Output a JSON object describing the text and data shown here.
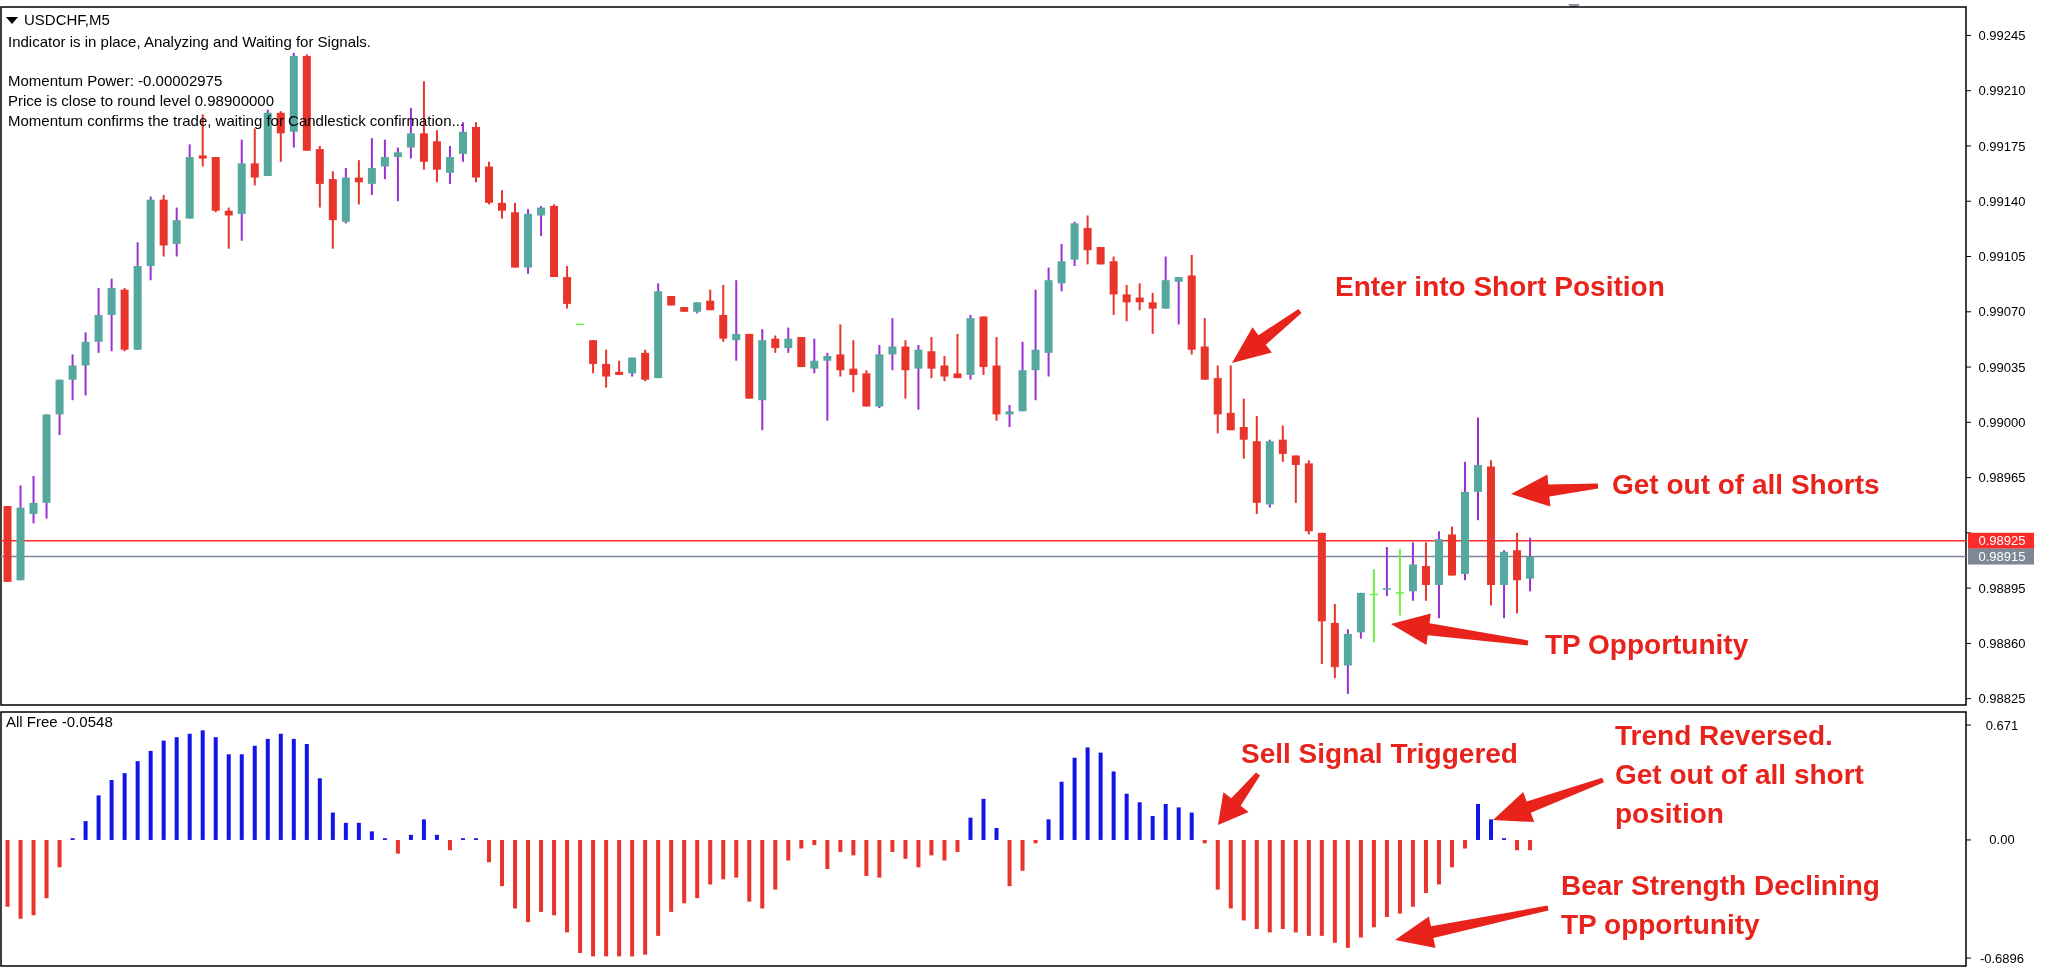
{
  "chart_data": [
    {
      "type": "candlestick",
      "title": "USDCHF,M5",
      "annotations": [
        "Indicator is in place, Analyzing and Waiting for Signals.",
        "Momentum Power: -0.00002975",
        "Price is close to round level 0.98900000",
        "Momentum confirms the trade, waiting for Candlestick confirmation...",
        "Enter into Short Position",
        "Get out of all Shorts",
        "TP Opportunity"
      ],
      "categories": [
        null,
        null,
        null,
        null,
        null,
        null,
        null,
        null,
        null,
        null,
        null,
        null,
        null,
        null,
        null,
        null,
        null,
        null,
        null,
        null,
        null,
        null,
        null,
        null,
        null,
        null,
        null,
        null,
        null,
        null,
        null,
        null,
        null,
        null,
        null,
        null,
        null,
        null,
        null,
        null,
        null,
        null,
        null,
        null,
        null,
        null,
        null,
        null,
        null,
        null,
        null,
        null,
        null,
        null,
        null,
        null,
        null,
        null,
        null,
        null,
        null,
        null,
        null,
        null,
        null,
        null,
        null,
        null,
        null,
        null,
        null,
        null,
        null,
        null,
        null,
        null,
        null,
        null,
        null,
        null,
        null,
        null,
        null,
        null,
        null,
        null,
        null,
        null,
        null,
        null,
        null,
        null,
        null,
        null,
        null,
        null,
        null,
        null,
        null,
        null,
        null,
        null,
        null,
        null,
        null,
        null,
        null,
        null,
        null,
        null,
        null,
        null,
        null,
        null,
        null,
        null,
        null,
        null,
        null,
        null,
        null,
        null,
        null,
        null,
        null,
        null,
        null,
        null,
        null,
        null,
        null,
        null,
        null,
        null,
        null,
        null,
        null,
        null,
        null,
        null,
        null,
        null,
        null,
        null,
        null,
        null,
        null,
        null,
        null,
        null,
        null
      ],
      "ohlc": [
        [
          0.98947,
          0.98947,
          0.98899,
          0.98899
        ],
        [
          0.989,
          0.9896,
          0.989,
          0.98946
        ],
        [
          0.98942,
          0.98966,
          0.98936,
          0.98949
        ],
        [
          0.98949,
          0.99005,
          0.98939,
          0.99005
        ],
        [
          0.99005,
          0.99027,
          0.98992,
          0.99027
        ],
        [
          0.99027,
          0.99043,
          0.99014,
          0.99036
        ],
        [
          0.99036,
          0.99057,
          0.99017,
          0.99051
        ],
        [
          0.99051,
          0.99085,
          0.99044,
          0.99068
        ],
        [
          0.99068,
          0.99091,
          0.99045,
          0.99085
        ],
        [
          0.99084,
          0.99085,
          0.99045,
          0.99046
        ],
        [
          0.99046,
          0.99114,
          0.99046,
          0.99099
        ],
        [
          0.99099,
          0.99143,
          0.9909,
          0.99141
        ],
        [
          0.99141,
          0.99144,
          0.99105,
          0.99112
        ],
        [
          0.99113,
          0.99136,
          0.99105,
          0.99128
        ],
        [
          0.99129,
          0.99176,
          0.99129,
          0.99168
        ],
        [
          0.99169,
          0.99195,
          0.99162,
          0.99167
        ],
        [
          0.99168,
          0.99168,
          0.99133,
          0.99134
        ],
        [
          0.99134,
          0.99136,
          0.9911,
          0.99131
        ],
        [
          0.99132,
          0.99179,
          0.99115,
          0.99164
        ],
        [
          0.99164,
          0.99186,
          0.9915,
          0.99155
        ],
        [
          0.99156,
          0.99198,
          0.99156,
          0.99196
        ],
        [
          0.99196,
          0.99197,
          0.99165,
          0.99183
        ],
        [
          0.99184,
          0.99234,
          0.99174,
          0.99232
        ],
        [
          0.99232,
          0.99233,
          0.99172,
          0.99172
        ],
        [
          0.99173,
          0.99175,
          0.99136,
          0.99151
        ],
        [
          0.99154,
          0.99159,
          0.9911,
          0.99128
        ],
        [
          0.99127,
          0.99161,
          0.99126,
          0.99155
        ],
        [
          0.99155,
          0.99166,
          0.99138,
          0.99152
        ],
        [
          0.99151,
          0.9918,
          0.99144,
          0.99161
        ],
        [
          0.99162,
          0.99179,
          0.99154,
          0.99168
        ],
        [
          0.99168,
          0.99174,
          0.9914,
          0.99171
        ],
        [
          0.99174,
          0.99199,
          0.99167,
          0.99183
        ],
        [
          0.99183,
          0.99216,
          0.9916,
          0.99165
        ],
        [
          0.99178,
          0.99185,
          0.99152,
          0.9916
        ],
        [
          0.99158,
          0.99175,
          0.99151,
          0.99168
        ],
        [
          0.9917,
          0.9919,
          0.99165,
          0.99184
        ],
        [
          0.99187,
          0.9919,
          0.99152,
          0.99155
        ],
        [
          0.99162,
          0.99165,
          0.99138,
          0.99139
        ],
        [
          0.99139,
          0.99147,
          0.99129,
          0.99134
        ],
        [
          0.99133,
          0.99139,
          0.99098,
          0.99098
        ],
        [
          0.99098,
          0.99135,
          0.99094,
          0.99132
        ],
        [
          0.99131,
          0.99137,
          0.99118,
          0.99136
        ],
        [
          0.99137,
          0.99138,
          0.99092,
          0.99092
        ],
        [
          0.99092,
          0.99099,
          0.99072,
          0.99075
        ],
        [
          0.99062,
          0.99062,
          0.99062,
          0.99062
        ],
        [
          0.99052,
          0.99052,
          0.99031,
          0.99037
        ],
        [
          0.99037,
          0.99046,
          0.99022,
          0.99029
        ],
        [
          0.99032,
          0.99039,
          0.9903,
          0.9903
        ],
        [
          0.99031,
          0.99041,
          0.99029,
          0.99041
        ],
        [
          0.99044,
          0.99046,
          0.99026,
          0.99027
        ],
        [
          0.99028,
          0.99088,
          0.99028,
          0.99083
        ],
        [
          0.9908,
          0.9908,
          0.99074,
          0.99074
        ],
        [
          0.99073,
          0.99073,
          0.9907,
          0.9907
        ],
        [
          0.9907,
          0.99076,
          0.99069,
          0.99076
        ],
        [
          0.99077,
          0.99084,
          0.99071,
          0.99071
        ],
        [
          0.99068,
          0.99087,
          0.99051,
          0.99053
        ],
        [
          0.99052,
          0.9909,
          0.99039,
          0.99056
        ],
        [
          0.99056,
          0.99056,
          0.99015,
          0.99015
        ],
        [
          0.99014,
          0.99059,
          0.98995,
          0.99052
        ],
        [
          0.99053,
          0.99055,
          0.99044,
          0.99047
        ],
        [
          0.99047,
          0.9906,
          0.99044,
          0.99053
        ],
        [
          0.99054,
          0.99054,
          0.99035,
          0.99035
        ],
        [
          0.99034,
          0.99053,
          0.99031,
          0.99039
        ],
        [
          0.99039,
          0.99044,
          0.99001,
          0.99042
        ],
        [
          0.99043,
          0.99062,
          0.99029,
          0.99033
        ],
        [
          0.99034,
          0.99052,
          0.99019,
          0.9903
        ],
        [
          0.99031,
          0.99033,
          0.9901,
          0.9901
        ],
        [
          0.9901,
          0.99049,
          0.99009,
          0.99043
        ],
        [
          0.99043,
          0.99066,
          0.99033,
          0.99048
        ],
        [
          0.99048,
          0.99052,
          0.99015,
          0.99033
        ],
        [
          0.99034,
          0.99049,
          0.99008,
          0.99046
        ],
        [
          0.99045,
          0.99054,
          0.99028,
          0.99034
        ],
        [
          0.99036,
          0.99042,
          0.99026,
          0.99029
        ],
        [
          0.99031,
          0.99056,
          0.99028,
          0.99028
        ],
        [
          0.9903,
          0.99068,
          0.99027,
          0.99066
        ],
        [
          0.99067,
          0.99067,
          0.9903,
          0.99035
        ],
        [
          0.99036,
          0.99054,
          0.99001,
          0.99005
        ],
        [
          0.99005,
          0.99011,
          0.98997,
          0.99007
        ],
        [
          0.99007,
          0.99051,
          0.99007,
          0.99033
        ],
        [
          0.99033,
          0.99084,
          0.99014,
          0.99046
        ],
        [
          0.99044,
          0.99098,
          0.99029,
          0.9909
        ],
        [
          0.99088,
          0.99113,
          0.99083,
          0.99102
        ],
        [
          0.99103,
          0.99127,
          0.99099,
          0.99126
        ],
        [
          0.99123,
          0.99131,
          0.991,
          0.99109
        ],
        [
          0.99111,
          0.99111,
          0.991,
          0.991
        ],
        [
          0.99102,
          0.99105,
          0.99068,
          0.99081
        ],
        [
          0.99081,
          0.99087,
          0.99064,
          0.99076
        ],
        [
          0.99079,
          0.99088,
          0.99071,
          0.99076
        ],
        [
          0.99076,
          0.99082,
          0.99056,
          0.99072
        ],
        [
          0.99072,
          0.99105,
          0.99072,
          0.9909
        ],
        [
          0.99089,
          0.99092,
          0.99062,
          0.99092
        ],
        [
          0.99093,
          0.99106,
          0.99043,
          0.99046
        ],
        [
          0.99048,
          0.99066,
          0.99027,
          0.99027
        ],
        [
          0.99028,
          0.99036,
          0.98993,
          0.99005
        ],
        [
          0.99006,
          0.99036,
          0.98995,
          0.98995
        ],
        [
          0.98997,
          0.99015,
          0.98977,
          0.98989
        ],
        [
          0.98988,
          0.99004,
          0.98942,
          0.98949
        ],
        [
          0.98948,
          0.98989,
          0.98946,
          0.98988
        ],
        [
          0.98989,
          0.98998,
          0.98975,
          0.9898
        ],
        [
          0.98979,
          0.98979,
          0.98949,
          0.98973
        ],
        [
          0.98974,
          0.98976,
          0.98929,
          0.98931
        ],
        [
          0.9893,
          0.9893,
          0.98847,
          0.98874
        ],
        [
          0.98873,
          0.98885,
          0.98838,
          0.98845
        ],
        [
          0.98846,
          0.98869,
          0.98828,
          0.98866
        ],
        [
          0.98867,
          0.98892,
          0.98863,
          0.98892
        ],
        [
          0.98891,
          0.98907,
          0.98861,
          0.98891
        ],
        [
          0.98894,
          0.98921,
          0.9889,
          0.98895
        ],
        [
          0.98892,
          0.9892,
          0.98878,
          0.98892
        ],
        [
          0.98893,
          0.98924,
          0.98887,
          0.9891
        ],
        [
          0.98909,
          0.98924,
          0.98887,
          0.98897
        ],
        [
          0.98897,
          0.98931,
          0.98876,
          0.98926
        ],
        [
          0.98929,
          0.98934,
          0.98903,
          0.98903
        ],
        [
          0.98904,
          0.98975,
          0.989,
          0.98956
        ],
        [
          0.98956,
          0.99003,
          0.98938,
          0.98973
        ],
        [
          0.98972,
          0.98976,
          0.98884,
          0.98897
        ],
        [
          0.98897,
          0.98919,
          0.98876,
          0.98918
        ],
        [
          0.98919,
          0.9893,
          0.98879,
          0.989
        ],
        [
          0.98901,
          0.98927,
          0.98893,
          0.98915
        ],
        null,
        null,
        null,
        null,
        null,
        null,
        null,
        null,
        null,
        null,
        null,
        null,
        null,
        null,
        null,
        null,
        null,
        null,
        null,
        null,
        null,
        null,
        null,
        null,
        null,
        null,
        null,
        null,
        null,
        null,
        null,
        null,
        null
      ],
      "ylim": [
        0.98821,
        0.99263
      ],
      "yticks": [
        0.99245,
        {
          "value": 0.9921,
          "label": "0.99210"
        },
        0.99175,
        {
          "value": 0.9914,
          "label": "0.99140"
        },
        0.99105,
        {
          "value": 0.9907,
          "label": "0.99070"
        },
        0.99035,
        {
          "value": 0.99,
          "label": "0.99000"
        },
        0.98965,
        {
          "value": 0.9893,
          "label": null
        },
        0.98895,
        {
          "value": 0.9886,
          "label": "0.98860"
        },
        0.98825
      ],
      "ref_lines": [
        {
          "axis": "y",
          "value": 0.98925,
          "label": "0.98925",
          "color": "#ff2a2a"
        },
        {
          "axis": "y",
          "value": 0.98915,
          "label": "0.98915",
          "color": "#7d8896"
        }
      ],
      "tick_labels": "y"
    },
    {
      "type": "bar",
      "title": "All Free -0.0548",
      "annotations": [
        "Sell Signal Triggered",
        "Trend Reversed. Get out of all short position",
        "Bear Strength Declining TP opportunity"
      ],
      "categories": [
        null,
        null,
        null,
        null,
        null,
        null,
        null,
        null,
        null,
        null,
        null,
        null,
        null,
        null,
        null,
        null,
        null,
        null,
        null,
        null,
        null,
        null,
        null,
        null,
        null,
        null,
        null,
        null,
        null,
        null,
        null,
        null,
        null,
        null,
        null,
        null,
        null,
        null,
        null,
        null,
        null,
        null,
        null,
        null,
        null,
        null,
        null,
        null,
        null,
        null,
        null,
        null,
        null,
        null,
        null,
        null,
        null,
        null,
        null,
        null,
        null,
        null,
        null,
        null,
        null,
        null,
        null,
        null,
        null,
        null,
        null,
        null,
        null,
        null,
        null,
        null,
        null,
        null,
        null,
        null,
        null,
        null,
        null,
        null,
        null,
        null,
        null,
        null,
        null,
        null,
        null,
        null,
        null,
        null,
        null,
        null,
        null,
        null,
        null,
        null,
        null,
        null,
        null,
        null,
        null,
        null,
        null,
        null,
        null,
        null,
        null,
        null,
        null,
        null,
        null,
        null,
        null,
        null,
        null,
        null,
        null,
        null,
        null,
        null,
        null,
        null,
        null,
        null,
        null,
        null,
        null,
        null,
        null,
        null,
        null,
        null,
        null,
        null,
        null,
        null,
        null,
        null,
        null,
        null,
        null,
        null,
        null,
        null,
        null,
        null,
        null
      ],
      "values": [
        -0.39,
        -0.46,
        -0.44,
        -0.34,
        -0.16,
        0.01,
        0.11,
        0.26,
        0.35,
        0.39,
        0.46,
        0.52,
        0.58,
        0.6,
        0.62,
        0.64,
        0.6,
        0.5,
        0.5,
        0.55,
        0.59,
        0.62,
        0.59,
        0.56,
        0.36,
        0.16,
        0.1,
        0.1,
        0.05,
        0.01,
        -0.08,
        0.03,
        0.12,
        0.03,
        -0.06,
        0.01,
        0.01,
        -0.13,
        -0.27,
        -0.4,
        -0.48,
        -0.42,
        -0.44,
        -0.54,
        -0.66,
        -0.68,
        -0.68,
        -0.68,
        -0.68,
        -0.67,
        -0.56,
        -0.42,
        -0.37,
        -0.34,
        -0.26,
        -0.23,
        -0.22,
        -0.36,
        -0.4,
        -0.29,
        -0.12,
        -0.05,
        -0.03,
        -0.17,
        -0.07,
        -0.09,
        -0.21,
        -0.22,
        -0.07,
        -0.11,
        -0.16,
        -0.09,
        -0.12,
        -0.07,
        0.13,
        0.24,
        0.07,
        -0.27,
        -0.18,
        -0.02,
        0.12,
        0.34,
        0.48,
        0.54,
        0.51,
        0.4,
        0.27,
        0.22,
        0.14,
        0.21,
        0.19,
        0.16,
        -0.02,
        -0.29,
        -0.4,
        -0.47,
        -0.52,
        -0.54,
        -0.52,
        -0.54,
        -0.56,
        -0.56,
        -0.6,
        -0.63,
        -0.57,
        -0.51,
        -0.45,
        -0.43,
        -0.39,
        -0.31,
        -0.26,
        -0.16,
        -0.05,
        0.21,
        0.12,
        0.01,
        -0.06,
        -0.06,
        null,
        null,
        null,
        null,
        null,
        null,
        null,
        null,
        null,
        null,
        null,
        null,
        null,
        null,
        null,
        null,
        null,
        null,
        null,
        null,
        null,
        null,
        null,
        null,
        null,
        null,
        null,
        null,
        null,
        null,
        null,
        null,
        null
      ],
      "colors": [
        "#e8342a",
        "#e8342a",
        "#e8342a",
        "#e8342a",
        "#e8342a",
        "#1414e6",
        "#1414e6",
        "#1414e6",
        "#1414e6",
        "#1414e6",
        "#1414e6",
        "#1414e6",
        "#1414e6",
        "#1414e6",
        "#1414e6",
        "#1414e6",
        "#1414e6",
        "#1414e6",
        "#1414e6",
        "#1414e6",
        "#1414e6",
        "#1414e6",
        "#1414e6",
        "#1414e6",
        "#1414e6",
        "#1414e6",
        "#1414e6",
        "#1414e6",
        "#1414e6",
        "#1414e6",
        "#e8342a",
        "#1414e6",
        "#1414e6",
        "#1414e6",
        "#e8342a",
        "#1414e6",
        "#1414e6",
        "#e8342a",
        "#e8342a",
        "#e8342a",
        "#e8342a",
        "#e8342a",
        "#e8342a",
        "#e8342a",
        "#e8342a",
        "#e8342a",
        "#e8342a",
        "#e8342a",
        "#e8342a",
        "#e8342a",
        "#e8342a",
        "#e8342a",
        "#e8342a",
        "#e8342a",
        "#e8342a",
        "#e8342a",
        "#e8342a",
        "#e8342a",
        "#e8342a",
        "#e8342a",
        "#e8342a",
        "#e8342a",
        "#e8342a",
        "#e8342a",
        "#e8342a",
        "#e8342a",
        "#e8342a",
        "#e8342a",
        "#e8342a",
        "#e8342a",
        "#e8342a",
        "#e8342a",
        "#e8342a",
        "#e8342a",
        "#1414e6",
        "#1414e6",
        "#1414e6",
        "#e8342a",
        "#e8342a",
        "#e8342a",
        "#1414e6",
        "#1414e6",
        "#1414e6",
        "#1414e6",
        "#1414e6",
        "#1414e6",
        "#1414e6",
        "#1414e6",
        "#1414e6",
        "#1414e6",
        "#1414e6",
        "#1414e6",
        "#e8342a",
        "#e8342a",
        "#e8342a",
        "#e8342a",
        "#e8342a",
        "#e8342a",
        "#e8342a",
        "#e8342a",
        "#e8342a",
        "#e8342a",
        "#e8342a",
        "#e8342a",
        "#e8342a",
        "#e8342a",
        "#e8342a",
        "#e8342a",
        "#e8342a",
        "#e8342a",
        "#e8342a",
        "#e8342a",
        "#e8342a",
        "#1414e6",
        "#1414e6",
        "#1414e6",
        "#e8342a",
        "#e8342a",
        null,
        null,
        null,
        null,
        null,
        null,
        null,
        null,
        null,
        null,
        null,
        null,
        null,
        null,
        null,
        null,
        null,
        null,
        null,
        null,
        null,
        null,
        null,
        null,
        null,
        null,
        null,
        null,
        null,
        null,
        null,
        null,
        null
      ],
      "ylim": [
        -0.736,
        0.747
      ],
      "yticks": [
        0.671,
        {
          "value": 0,
          "label": "0.00"
        },
        -0.6896
      ],
      "tick_labels": "y"
    }
  ]
}
